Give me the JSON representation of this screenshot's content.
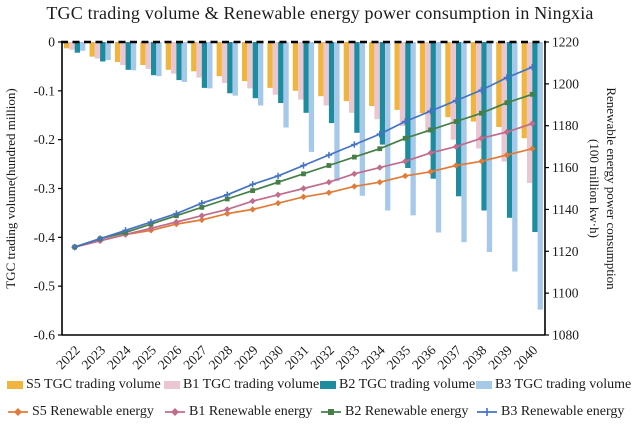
{
  "title": "TGC trading volume & Renewable energy power consumption in Ningxia",
  "chart_data": {
    "type": "combo-bar-line",
    "categories": [
      "2022",
      "2023",
      "2024",
      "2025",
      "2026",
      "2027",
      "2028",
      "2029",
      "2030",
      "2031",
      "2032",
      "2033",
      "2034",
      "2035",
      "2036",
      "2037",
      "2038",
      "2039",
      "2040"
    ],
    "bar_series": [
      {
        "name": "S5 TGC trading volume",
        "color": "#F0B53E",
        "axis": "left",
        "values": [
          -0.013,
          -0.03,
          -0.041,
          -0.047,
          -0.057,
          -0.06,
          -0.07,
          -0.08,
          -0.094,
          -0.1,
          -0.111,
          -0.121,
          -0.131,
          -0.139,
          -0.146,
          -0.154,
          -0.163,
          -0.174,
          -0.197
        ]
      },
      {
        "name": "B1 TGC trading volume",
        "color": "#E9C6D0",
        "axis": "left",
        "values": [
          -0.016,
          -0.034,
          -0.047,
          -0.055,
          -0.065,
          -0.073,
          -0.084,
          -0.095,
          -0.108,
          -0.118,
          -0.13,
          -0.145,
          -0.158,
          -0.172,
          -0.186,
          -0.2,
          -0.218,
          -0.245,
          -0.289
        ]
      },
      {
        "name": "B2 TGC trading volume",
        "color": "#1C8C9E",
        "axis": "left",
        "values": [
          -0.022,
          -0.04,
          -0.057,
          -0.068,
          -0.078,
          -0.094,
          -0.105,
          -0.115,
          -0.125,
          -0.145,
          -0.166,
          -0.186,
          -0.21,
          -0.258,
          -0.28,
          -0.316,
          -0.345,
          -0.36,
          -0.389
        ]
      },
      {
        "name": "B3 TGC trading volume",
        "color": "#A7C9E9",
        "axis": "left",
        "values": [
          -0.018,
          -0.037,
          -0.058,
          -0.07,
          -0.082,
          -0.095,
          -0.11,
          -0.13,
          -0.175,
          -0.225,
          -0.285,
          -0.315,
          -0.345,
          -0.355,
          -0.39,
          -0.41,
          -0.43,
          -0.47,
          -0.548
        ]
      }
    ],
    "line_series": [
      {
        "name": "S5 Renewable energy",
        "color": "#E07B39",
        "marker": "diamond",
        "axis": "right",
        "values": [
          1122,
          1125,
          1128,
          1130,
          1133,
          1135,
          1138,
          1140,
          1143,
          1146,
          1148,
          1151,
          1153,
          1156,
          1158,
          1161,
          1163,
          1166,
          1169
        ]
      },
      {
        "name": "B1 Renewable energy",
        "color": "#C06C8C",
        "marker": "diamond",
        "axis": "right",
        "values": [
          1122,
          1125,
          1128,
          1131,
          1134,
          1137,
          1140,
          1144,
          1147,
          1150,
          1153,
          1157,
          1160,
          1163,
          1167,
          1170,
          1174,
          1177,
          1181
        ]
      },
      {
        "name": "B2 Renewable energy",
        "color": "#457F46",
        "marker": "square",
        "axis": "right",
        "values": [
          1122,
          1126,
          1129,
          1133,
          1137,
          1141,
          1145,
          1149,
          1153,
          1157,
          1161,
          1165,
          1169,
          1174,
          1178,
          1182,
          1186,
          1191,
          1195
        ]
      },
      {
        "name": "B3 Renewable energy",
        "color": "#4473C5",
        "marker": "plus",
        "axis": "right",
        "values": [
          1122,
          1126,
          1130,
          1134,
          1138,
          1143,
          1147,
          1152,
          1156,
          1161,
          1166,
          1171,
          1176,
          1182,
          1187,
          1192,
          1197,
          1203,
          1208
        ]
      }
    ],
    "left_axis": {
      "label": "TGC trading volume(hundred million)",
      "min": -0.6,
      "max": 0,
      "ticks": [
        "0",
        "-0.1",
        "-0.2",
        "-0.3",
        "-0.4",
        "-0.5",
        "-0.6"
      ]
    },
    "right_axis": {
      "label_line1": "Renewable energy power consumption",
      "label_line2": "(100 million kw·h)",
      "min": 1080,
      "max": 1220,
      "ticks": [
        "1220",
        "1200",
        "1180",
        "1160",
        "1140",
        "1120",
        "1100",
        "1080"
      ]
    },
    "zero_line_dashed": true,
    "grid": false,
    "legend_position": "bottom"
  },
  "legend_note": "row1 = bar swatches, row2 = line swatches"
}
